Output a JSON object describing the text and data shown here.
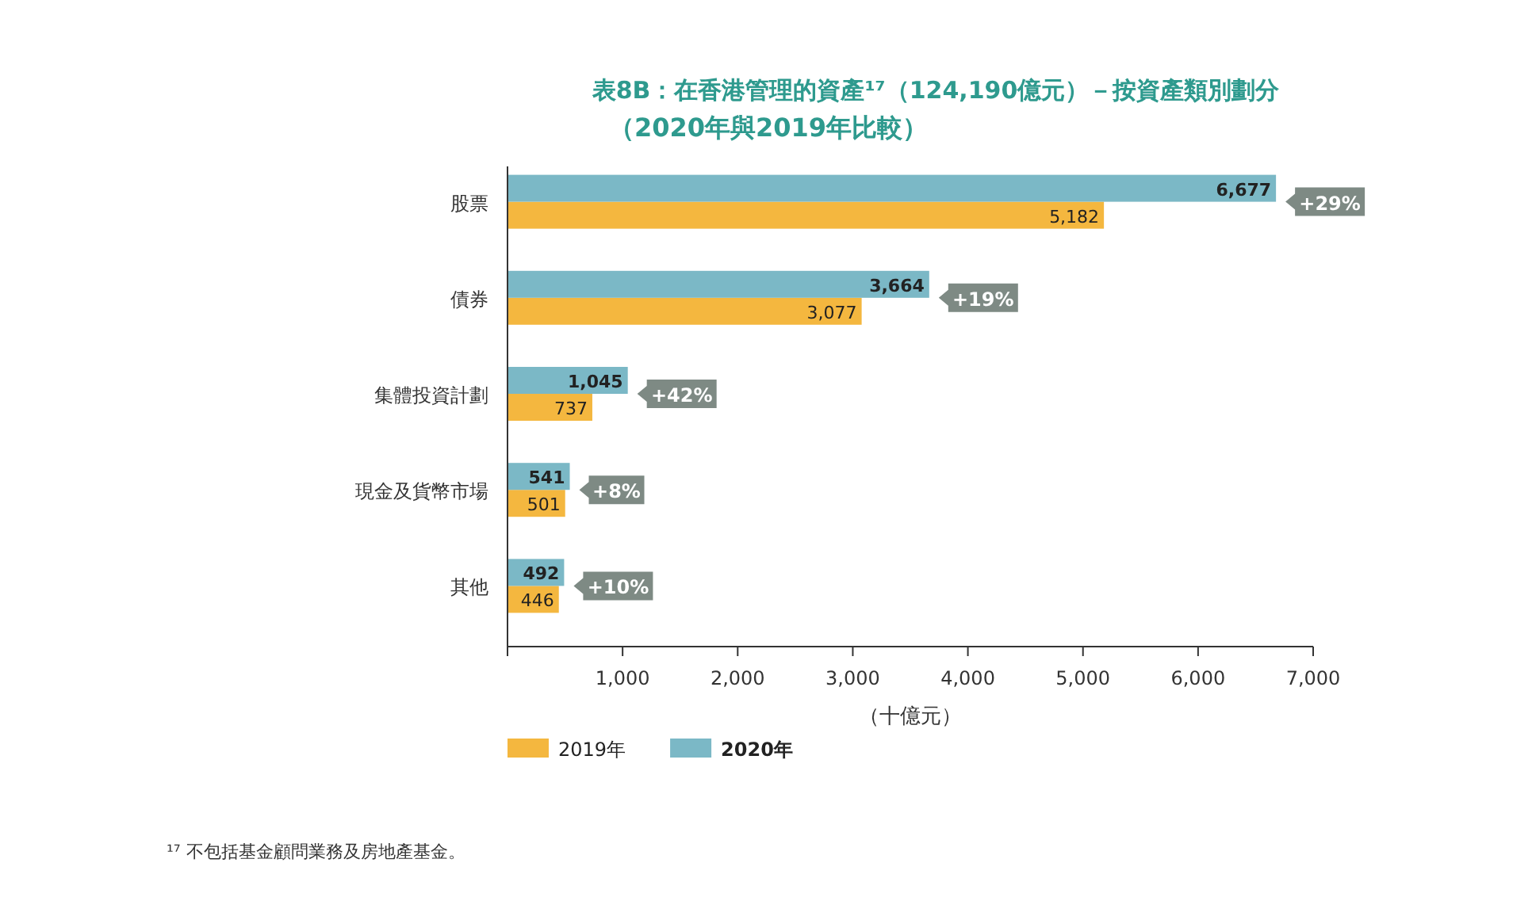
{
  "chart_data": {
    "type": "bar",
    "orientation": "horizontal",
    "title": "表8B：在香港管理的資產¹⁷（124,190億元）－按資產類別劃分",
    "subtitle": "（2020年與2019年比較）",
    "xlabel": "（十億元）",
    "categories": [
      "股票",
      "債券",
      "集體投資計劃",
      "現金及貨幣市場",
      "其他"
    ],
    "series": [
      {
        "name": "2019年",
        "color": "#f4b73f",
        "values": [
          5182,
          3077,
          737,
          501,
          446
        ],
        "value_labels": [
          "5,182",
          "3,077",
          "737",
          "501",
          "446"
        ]
      },
      {
        "name": "2020年",
        "color": "#7bb8c6",
        "values": [
          6677,
          3664,
          1045,
          541,
          492
        ],
        "value_labels": [
          "6,677",
          "3,664",
          "1,045",
          "541",
          "492"
        ]
      }
    ],
    "xlim": [
      0,
      7000
    ],
    "xticks": [
      {
        "value": 0,
        "label": null
      },
      {
        "value": 1000,
        "label": "1,000"
      },
      {
        "value": 2000,
        "label": "2,000"
      },
      {
        "value": 3000,
        "label": "3,000"
      },
      {
        "value": 4000,
        "label": "4,000"
      },
      {
        "value": 5000,
        "label": "5,000"
      },
      {
        "value": 6000,
        "label": "6,000"
      },
      {
        "value": 7000,
        "label": "7,000"
      }
    ],
    "legend": "bottom",
    "annotations": [
      {
        "text": "+29%",
        "x": 6677,
        "y": "股票"
      },
      {
        "text": "+19%",
        "x": 3664,
        "y": "債券"
      },
      {
        "text": "+42%",
        "x": 1045,
        "y": "集體投資計劃"
      },
      {
        "text": "+8%",
        "x": 541,
        "y": "現金及貨幣市場"
      },
      {
        "text": "+10%",
        "x": 492,
        "y": "其他"
      },
      "¹⁷ 不包括基金顧問業務及房地產基金。"
    ]
  }
}
